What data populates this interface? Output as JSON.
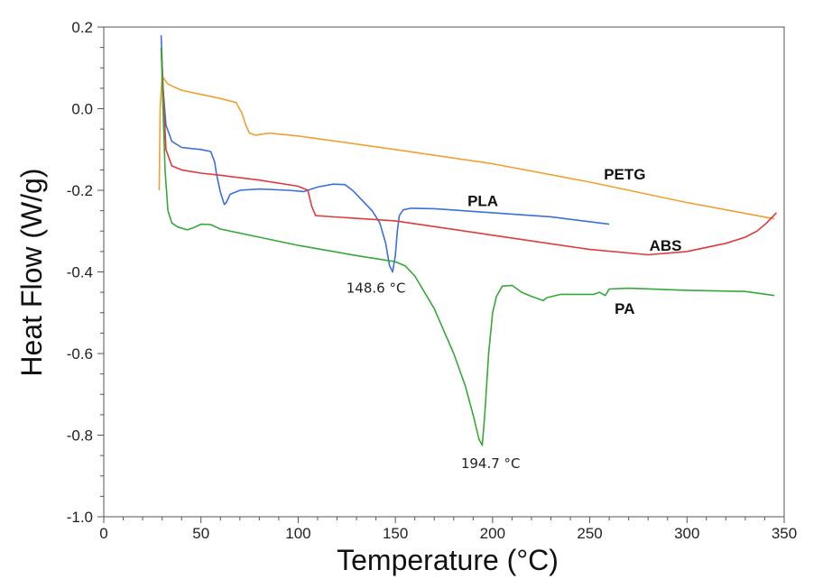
{
  "chart_data": {
    "type": "line",
    "xlabel": "Temperature (°C)",
    "ylabel": "Heat Flow (W/g)",
    "xlim": [
      0,
      350
    ],
    "ylim": [
      -1.0,
      0.2
    ],
    "xticks": [
      0,
      50,
      100,
      150,
      200,
      250,
      300,
      350
    ],
    "yticks": [
      -1.0,
      -0.8,
      -0.6,
      -0.4,
      -0.2,
      0.0,
      0.2
    ],
    "ytick_labels": [
      "-1.0",
      "-0.8",
      "-0.6",
      "-0.4",
      "-0.2",
      "0.0",
      "0.2"
    ],
    "grid": false,
    "series": [
      {
        "name": "PETG",
        "color": "#f0a030",
        "points": [
          [
            28.5,
            -0.2
          ],
          [
            29,
            0.0
          ],
          [
            30,
            0.08
          ],
          [
            33,
            0.06
          ],
          [
            40,
            0.045
          ],
          [
            50,
            0.035
          ],
          [
            60,
            0.025
          ],
          [
            68,
            0.015
          ],
          [
            71,
            -0.01
          ],
          [
            73,
            -0.04
          ],
          [
            75,
            -0.06
          ],
          [
            78,
            -0.065
          ],
          [
            85,
            -0.06
          ],
          [
            100,
            -0.067
          ],
          [
            150,
            -0.1
          ],
          [
            200,
            -0.135
          ],
          [
            250,
            -0.18
          ],
          [
            300,
            -0.23
          ],
          [
            345,
            -0.27
          ]
        ]
      },
      {
        "name": "PLA",
        "color": "#3a6fdc",
        "points": [
          [
            29.5,
            0.18
          ],
          [
            30.5,
            0.05
          ],
          [
            32,
            -0.04
          ],
          [
            35,
            -0.08
          ],
          [
            40,
            -0.095
          ],
          [
            50,
            -0.1
          ],
          [
            55,
            -0.105
          ],
          [
            57,
            -0.13
          ],
          [
            58,
            -0.16
          ],
          [
            60,
            -0.205
          ],
          [
            62,
            -0.235
          ],
          [
            63,
            -0.23
          ],
          [
            65,
            -0.21
          ],
          [
            70,
            -0.2
          ],
          [
            80,
            -0.197
          ],
          [
            95,
            -0.2
          ],
          [
            103,
            -0.203
          ],
          [
            110,
            -0.192
          ],
          [
            118,
            -0.185
          ],
          [
            124,
            -0.186
          ],
          [
            128,
            -0.2
          ],
          [
            133,
            -0.225
          ],
          [
            138,
            -0.25
          ],
          [
            142,
            -0.28
          ],
          [
            145,
            -0.33
          ],
          [
            147,
            -0.385
          ],
          [
            148.6,
            -0.4
          ],
          [
            150,
            -0.36
          ],
          [
            151,
            -0.3
          ],
          [
            152,
            -0.262
          ],
          [
            154,
            -0.248
          ],
          [
            158,
            -0.244
          ],
          [
            170,
            -0.245
          ],
          [
            200,
            -0.255
          ],
          [
            230,
            -0.265
          ],
          [
            260,
            -0.283
          ]
        ]
      },
      {
        "name": "ABS",
        "color": "#e03a3a",
        "points": [
          [
            29.5,
            0.15
          ],
          [
            31,
            0.0
          ],
          [
            32,
            -0.1
          ],
          [
            35,
            -0.14
          ],
          [
            40,
            -0.15
          ],
          [
            50,
            -0.158
          ],
          [
            60,
            -0.163
          ],
          [
            80,
            -0.175
          ],
          [
            100,
            -0.19
          ],
          [
            105,
            -0.2
          ],
          [
            107,
            -0.24
          ],
          [
            109,
            -0.262
          ],
          [
            115,
            -0.264
          ],
          [
            150,
            -0.275
          ],
          [
            200,
            -0.31
          ],
          [
            250,
            -0.345
          ],
          [
            280,
            -0.358
          ],
          [
            300,
            -0.35
          ],
          [
            320,
            -0.33
          ],
          [
            330,
            -0.315
          ],
          [
            336,
            -0.3
          ],
          [
            341,
            -0.28
          ],
          [
            346,
            -0.255
          ]
        ]
      },
      {
        "name": "PA",
        "color": "#35a83a",
        "points": [
          [
            29.5,
            0.15
          ],
          [
            30.5,
            0.0
          ],
          [
            31.5,
            -0.15
          ],
          [
            33,
            -0.25
          ],
          [
            35,
            -0.28
          ],
          [
            38,
            -0.29
          ],
          [
            43,
            -0.297
          ],
          [
            47,
            -0.29
          ],
          [
            50,
            -0.283
          ],
          [
            55,
            -0.284
          ],
          [
            60,
            -0.295
          ],
          [
            80,
            -0.315
          ],
          [
            100,
            -0.335
          ],
          [
            130,
            -0.36
          ],
          [
            150,
            -0.375
          ],
          [
            155,
            -0.385
          ],
          [
            160,
            -0.41
          ],
          [
            170,
            -0.49
          ],
          [
            180,
            -0.6
          ],
          [
            186,
            -0.68
          ],
          [
            190,
            -0.75
          ],
          [
            193,
            -0.81
          ],
          [
            194.7,
            -0.825
          ],
          [
            196,
            -0.75
          ],
          [
            198,
            -0.6
          ],
          [
            200,
            -0.5
          ],
          [
            202,
            -0.46
          ],
          [
            205,
            -0.435
          ],
          [
            210,
            -0.433
          ],
          [
            215,
            -0.45
          ],
          [
            220,
            -0.46
          ],
          [
            226,
            -0.47
          ],
          [
            228,
            -0.463
          ],
          [
            235,
            -0.455
          ],
          [
            252,
            -0.455
          ],
          [
            255,
            -0.45
          ],
          [
            258,
            -0.458
          ],
          [
            260,
            -0.442
          ],
          [
            270,
            -0.44
          ],
          [
            300,
            -0.445
          ],
          [
            330,
            -0.448
          ],
          [
            345,
            -0.458
          ]
        ]
      }
    ],
    "series_labels": [
      {
        "text": "PETG",
        "x": 268,
        "y": -0.16
      },
      {
        "text": "PLA",
        "x": 195,
        "y": -0.225
      },
      {
        "text": "ABS",
        "x": 289,
        "y": -0.335
      },
      {
        "text": "PA",
        "x": 268,
        "y": -0.49
      }
    ],
    "annotations": [
      {
        "text": "148.6 °C",
        "x": 140,
        "y": -0.44
      },
      {
        "text": "194.7 °C",
        "x": 199,
        "y": -0.87
      }
    ]
  }
}
